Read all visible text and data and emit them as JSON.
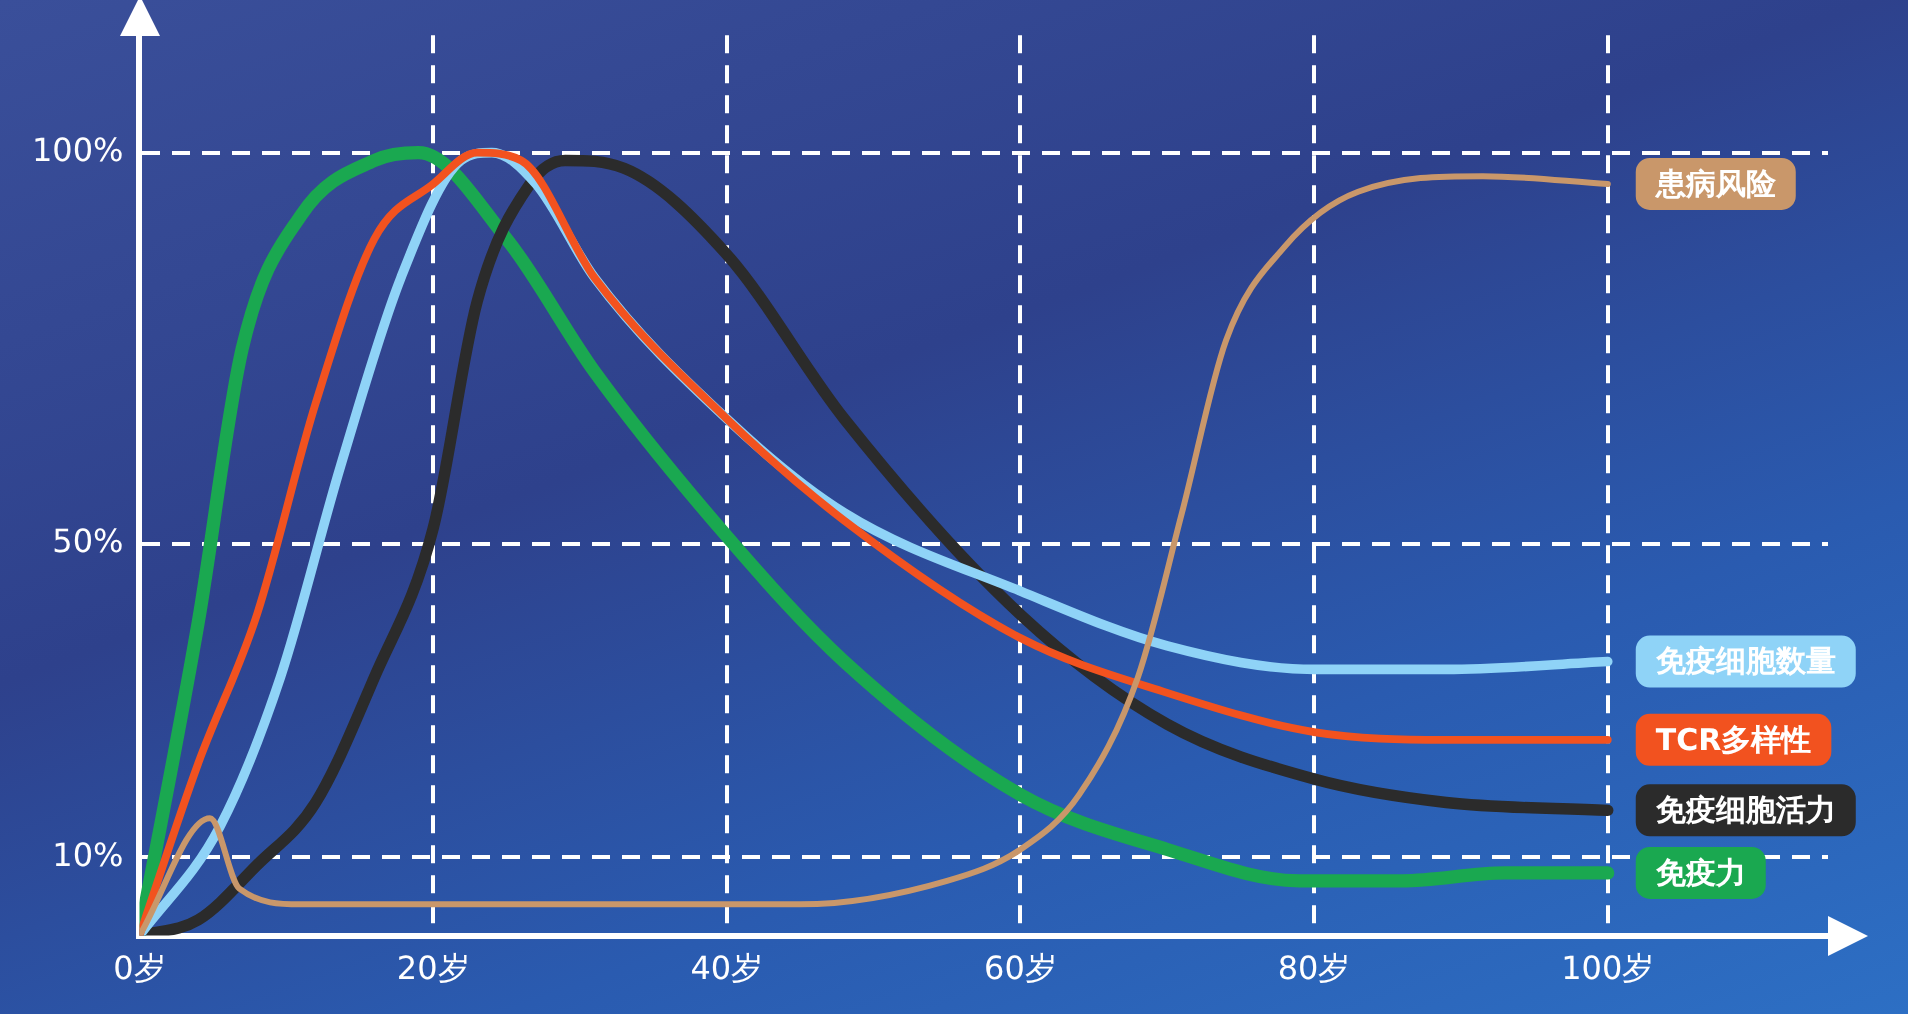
{
  "chart_data": {
    "type": "line",
    "xlim": [
      0,
      115
    ],
    "ylim": [
      0,
      115
    ],
    "xticks": [
      {
        "value": 0,
        "label": "0岁"
      },
      {
        "value": 20,
        "label": "20岁"
      },
      {
        "value": 40,
        "label": "40岁"
      },
      {
        "value": 60,
        "label": "60岁"
      },
      {
        "value": 80,
        "label": "80岁"
      },
      {
        "value": 100,
        "label": "100岁"
      }
    ],
    "yticks": [
      {
        "value": 10,
        "label": "10%"
      },
      {
        "value": 50,
        "label": "50%"
      },
      {
        "value": 100,
        "label": "100%"
      }
    ],
    "grid": true,
    "legend": false,
    "marker": "none",
    "line_style": "solid",
    "series": [
      {
        "name": "患病风险",
        "color": "#c9976a",
        "x": [
          0,
          4.8,
          6.8,
          11,
          24.6,
          45,
          55,
          60,
          64,
          68,
          71,
          74,
          78,
          83,
          91.5,
          100
        ],
        "values": [
          0,
          15,
          6,
          4,
          4,
          4,
          7,
          11,
          18,
          33,
          54,
          76,
          88,
          95,
          97,
          96
        ]
      },
      {
        "name": "TCR多样性",
        "color": "#f2521f",
        "x": [
          0,
          4,
          8,
          12,
          16,
          20,
          23,
          26,
          31,
          40,
          48,
          60,
          70,
          80,
          89,
          100
        ],
        "values": [
          0,
          22,
          41,
          68,
          89,
          96,
          100,
          99,
          84,
          66,
          53,
          38,
          31,
          26,
          25,
          25
        ]
      },
      {
        "name": "免疫细胞数量",
        "color": "#8fd3f7",
        "x": [
          0,
          5.5,
          9.6,
          13.7,
          17.8,
          21.9,
          24,
          27,
          31,
          40,
          48,
          60,
          70,
          80,
          89,
          100
        ],
        "values": [
          0,
          14,
          33,
          60,
          84,
          99,
          100,
          96,
          84,
          66,
          54,
          44,
          37,
          34,
          34,
          35
        ]
      },
      {
        "name": "免疫细胞活力",
        "color": "#2b2b2b",
        "x": [
          0,
          4,
          8,
          12,
          16,
          20,
          23,
          26.6,
          29,
          33,
          40,
          48,
          60,
          70,
          80,
          89,
          100
        ],
        "values": [
          0,
          2,
          9,
          17,
          33,
          52,
          81,
          96,
          99,
          98,
          87,
          66,
          41,
          27,
          20,
          17,
          16
        ]
      },
      {
        "name": "免疫力",
        "color": "#1aa850",
        "x": [
          0,
          4,
          7,
          11,
          16,
          19,
          25,
          31,
          40,
          48,
          60,
          70,
          79,
          86,
          93,
          100
        ],
        "values": [
          0,
          40,
          75,
          92,
          99,
          100,
          89,
          72,
          51,
          35,
          18,
          11,
          7,
          7,
          8,
          8
        ]
      }
    ]
  }
}
